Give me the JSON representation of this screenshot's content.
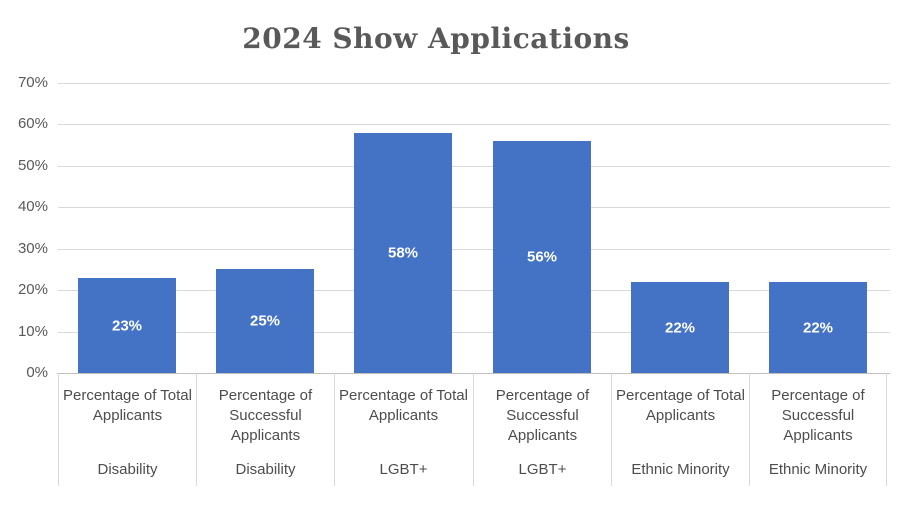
{
  "title": {
    "text": "2024 Show Applications"
  },
  "colors": {
    "bar": "#4472C4",
    "gridline": "#D9D9D9",
    "axis_line": "#BFBFBF",
    "cell_border": "#D9D9D9",
    "tick_text": "#595959",
    "category_text": "#4D4D4D",
    "title_text": "#595959",
    "data_label_text": "#FFFFFF",
    "background": "#FFFFFF"
  },
  "chart_data": {
    "type": "bar",
    "title": "2024 Show Applications",
    "categories": [
      "Percentage of Total Applicants",
      "Percentage of Successful Applicants",
      "Percentage of Total Applicants",
      "Percentage of Successful Applicants",
      "Percentage of Total Applicants",
      "Percentage of Successful Applicants"
    ],
    "groups": [
      "Disability",
      "Disability",
      "LGBT+",
      "LGBT+",
      "Ethnic Minority",
      "Ethnic Minority"
    ],
    "values": [
      23,
      25,
      58,
      56,
      22,
      22
    ],
    "data_labels": [
      "23%",
      "25%",
      "58%",
      "56%",
      "22%",
      "22%"
    ],
    "xlabel": "",
    "ylabel": "",
    "ylim": [
      0,
      70
    ],
    "ytick_step": 10,
    "ytick_labels": [
      "0%",
      "10%",
      "20%",
      "30%",
      "40%",
      "50%",
      "60%",
      "70%"
    ],
    "grid": true,
    "legend": false
  }
}
